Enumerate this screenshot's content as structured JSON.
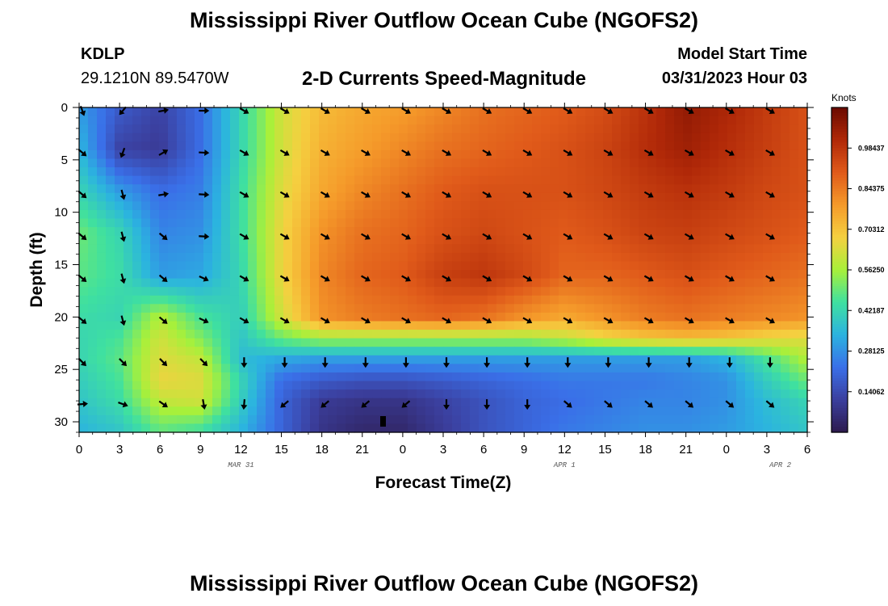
{
  "page": {
    "title": "Mississippi River Outflow Ocean Cube (NGOFS2)",
    "station": "KDLP",
    "coords": "29.1210N  89.5470W",
    "product": "2-D Currents Speed-Magnitude",
    "model_start_label": "Model Start Time",
    "model_start_value": "03/31/2023 Hour 03",
    "bottom_title": "Mississippi River Outflow Ocean Cube (NGOFS2)"
  },
  "colors": {
    "colormap": [
      "#2d1b4e",
      "#3b3f9e",
      "#3a6fe8",
      "#2bb3e0",
      "#3fe0a0",
      "#a8f03a",
      "#f5d040",
      "#f59a2a",
      "#e05a1a",
      "#b02808",
      "#6a0a00"
    ]
  },
  "chart_data": {
    "type": "heatmap",
    "title": "2-D Currents Speed-Magnitude",
    "xlabel": "Forecast Time(Z)",
    "ylabel": "Depth (ft)",
    "x_tick_labels": [
      "0",
      "3",
      "6",
      "9",
      "12",
      "15",
      "18",
      "21",
      "0",
      "3",
      "6",
      "9",
      "12",
      "15",
      "18",
      "21",
      "0",
      "3",
      "6"
    ],
    "x_hours": [
      0,
      3,
      6,
      9,
      12,
      15,
      18,
      21,
      24,
      27,
      30,
      33,
      36,
      39,
      42,
      45,
      48,
      51,
      54
    ],
    "x_range_hours": [
      0,
      54
    ],
    "date_labels": [
      {
        "label": "MAR 31",
        "hour": 12
      },
      {
        "label": "APR 1",
        "hour": 36
      },
      {
        "label": "APR 2",
        "hour": 52
      }
    ],
    "y_ticks": [
      "0",
      "5",
      "10",
      "15",
      "20",
      "25",
      "30"
    ],
    "ylim": [
      0,
      31
    ],
    "y_inverted": true,
    "colorbar": {
      "unit": "Knots",
      "ticks": [
        "0.14062",
        "0.28125",
        "0.42187",
        "0.56250",
        "0.70312",
        "0.84375",
        "0.98437"
      ],
      "range": [
        0,
        1.125
      ]
    },
    "vector_times": [
      0,
      3,
      6,
      9,
      12,
      15,
      18,
      21,
      24,
      27,
      30,
      33,
      36,
      39,
      42,
      45,
      48,
      51
    ],
    "vector_depths": [
      0,
      4,
      8,
      12,
      16,
      20,
      24,
      28
    ],
    "speed_grid": {
      "x_hours": [
        0,
        3,
        6,
        9,
        12,
        15,
        18,
        21,
        24,
        27,
        30,
        33,
        36,
        39,
        42,
        45,
        48,
        51,
        54
      ],
      "depths": [
        0,
        4,
        8,
        12,
        16,
        20,
        22,
        24,
        26,
        28,
        31
      ],
      "values": [
        [
          0.3,
          0.18,
          0.12,
          0.22,
          0.42,
          0.62,
          0.72,
          0.76,
          0.78,
          0.82,
          0.86,
          0.88,
          0.9,
          0.93,
          0.99,
          1.06,
          1.02,
          0.97,
          0.92
        ],
        [
          0.35,
          0.12,
          0.1,
          0.22,
          0.42,
          0.62,
          0.74,
          0.78,
          0.82,
          0.86,
          0.88,
          0.9,
          0.92,
          0.95,
          1.0,
          1.04,
          1.0,
          0.96,
          0.92
        ],
        [
          0.42,
          0.3,
          0.22,
          0.25,
          0.44,
          0.64,
          0.76,
          0.82,
          0.86,
          0.9,
          0.92,
          0.92,
          0.92,
          0.94,
          0.97,
          0.99,
          0.97,
          0.94,
          0.92
        ],
        [
          0.5,
          0.42,
          0.26,
          0.28,
          0.44,
          0.66,
          0.8,
          0.86,
          0.88,
          0.92,
          0.94,
          0.92,
          0.9,
          0.92,
          0.95,
          0.96,
          0.94,
          0.92,
          0.9
        ],
        [
          0.48,
          0.44,
          0.3,
          0.32,
          0.42,
          0.66,
          0.82,
          0.88,
          0.9,
          0.96,
          0.98,
          0.94,
          0.88,
          0.88,
          0.9,
          0.92,
          0.9,
          0.88,
          0.86
        ],
        [
          0.44,
          0.42,
          0.58,
          0.46,
          0.4,
          0.62,
          0.8,
          0.84,
          0.86,
          0.88,
          0.86,
          0.8,
          0.76,
          0.8,
          0.84,
          0.86,
          0.84,
          0.82,
          0.8
        ],
        [
          0.42,
          0.46,
          0.62,
          0.52,
          0.38,
          0.5,
          0.56,
          0.56,
          0.56,
          0.56,
          0.56,
          0.56,
          0.6,
          0.66,
          0.7,
          0.72,
          0.7,
          0.66,
          0.64
        ],
        [
          0.42,
          0.48,
          0.64,
          0.6,
          0.36,
          0.32,
          0.3,
          0.3,
          0.3,
          0.3,
          0.3,
          0.3,
          0.3,
          0.3,
          0.3,
          0.3,
          0.34,
          0.46,
          0.58
        ],
        [
          0.4,
          0.46,
          0.66,
          0.64,
          0.42,
          0.22,
          0.18,
          0.16,
          0.16,
          0.18,
          0.2,
          0.22,
          0.24,
          0.24,
          0.24,
          0.26,
          0.28,
          0.4,
          0.5
        ],
        [
          0.38,
          0.44,
          0.6,
          0.62,
          0.4,
          0.2,
          0.1,
          0.08,
          0.08,
          0.12,
          0.16,
          0.2,
          0.22,
          0.24,
          0.26,
          0.26,
          0.28,
          0.36,
          0.42
        ],
        [
          0.34,
          0.38,
          0.48,
          0.44,
          0.34,
          0.2,
          0.08,
          0.04,
          0.04,
          0.1,
          0.16,
          0.2,
          0.24,
          0.26,
          0.28,
          0.28,
          0.3,
          0.34,
          0.38
        ]
      ]
    }
  }
}
